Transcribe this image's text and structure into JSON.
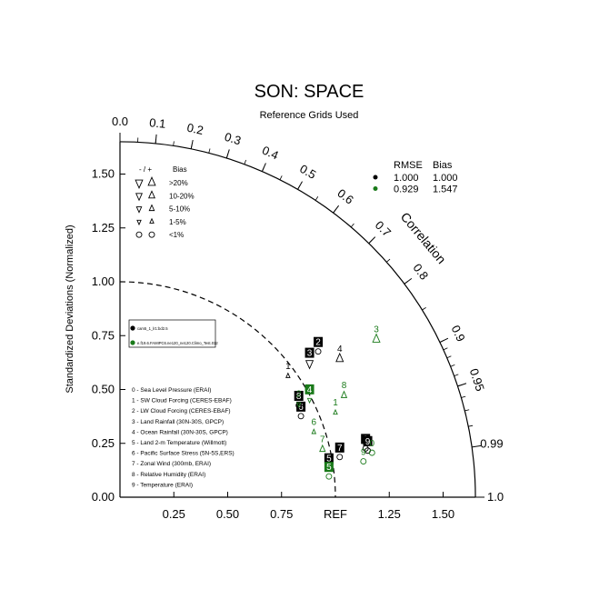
{
  "chart_data": {
    "type": "scatter",
    "subtype": "taylor-diagram",
    "title": "SON: SPACE",
    "subtitle": "Reference Grids Used",
    "ylabel": "Standardized Deviations (Normalized)",
    "angular_label": "Correlation",
    "ref_label": "REF",
    "std_range": [
      0,
      1.65
    ],
    "std_ticks": [
      0.25,
      0.5,
      0.75,
      1.25,
      1.5
    ],
    "std_ticks_y": [
      "0.00",
      "0.25",
      "0.50",
      "0.75",
      "1.00",
      "1.25",
      "1.50"
    ],
    "std_ticks_x": [
      "0.25",
      "0.50",
      "0.75",
      "1.25",
      "1.50"
    ],
    "corr_ticks": [
      {
        "value": 0.0,
        "label": "0.0"
      },
      {
        "value": 0.1,
        "label": "0.1"
      },
      {
        "value": 0.2,
        "label": "0.2"
      },
      {
        "value": 0.3,
        "label": "0.3"
      },
      {
        "value": 0.4,
        "label": "0.4"
      },
      {
        "value": 0.5,
        "label": "0.5"
      },
      {
        "value": 0.6,
        "label": "0.6"
      },
      {
        "value": 0.7,
        "label": "0.7"
      },
      {
        "value": 0.8,
        "label": "0.8"
      },
      {
        "value": 0.9,
        "label": "0.9"
      },
      {
        "value": 0.95,
        "label": "0.95"
      },
      {
        "value": 0.99,
        "label": "0.99"
      },
      {
        "value": 1.0,
        "label": "1.0"
      }
    ],
    "bias_legend": {
      "header_sign": "- / +",
      "header_bias": "Bias",
      "rows": [
        {
          "label": ">20%",
          "size": "xl"
        },
        {
          "label": "10-20%",
          "size": "l"
        },
        {
          "label": "5-10%",
          "size": "m"
        },
        {
          "label": "1-5%",
          "size": "s"
        },
        {
          "label": "<1%",
          "size": "circle"
        }
      ]
    },
    "stats_legend": {
      "rmse_header": "RMSE",
      "bias_header": "Bias",
      "rows": [
        {
          "rmse": "1.000",
          "bias": "1.000",
          "color": "#000000"
        },
        {
          "rmse": "0.929",
          "bias": "1.547",
          "color": "#1a7a1a"
        }
      ]
    },
    "case_legend": {
      "cases": [
        {
          "label": "cam5_1_lr1:bd2.5",
          "color": "#000000"
        },
        {
          "label": "e.f19.6.FAMIPC6.ne120_ne120.Climo_Test.012",
          "color": "#1a7a1a"
        }
      ]
    },
    "variables": [
      "0 - Sea Level Pressure (ERAI)",
      "1 - SW Cloud Forcing (CERES-EBAF)",
      "2 - LW Cloud Forcing (CERES-EBAF)",
      "3 - Land Rainfall (30N-30S, GPCP)",
      "4 - Ocean Rainfall (30N-30S, GPCP)",
      "5 - Land 2-m Temperature (Willmott)",
      "6 - Pacific Surface Stress (5N-5S,ERS)",
      "7 - Zonal Wind (300mb, ERAI)",
      "8 - Relative Humidity (ERAI)",
      "9 - Temperature (ERAI)"
    ],
    "series": [
      {
        "name": "cam5_1_lr1:bd2.5",
        "color": "#000000",
        "points": [
          {
            "id": "0",
            "x": 1.14,
            "y": 0.26,
            "marker": "circle"
          },
          {
            "id": "1",
            "x": 0.78,
            "y": 0.6,
            "marker": "up-small"
          },
          {
            "id": "2",
            "x": 0.92,
            "y": 0.71,
            "marker": "circle"
          },
          {
            "id": "3",
            "x": 0.88,
            "y": 0.66,
            "marker": "down-large"
          },
          {
            "id": "4",
            "x": 1.02,
            "y": 0.68,
            "marker": "up-large"
          },
          {
            "id": "5",
            "x": 0.97,
            "y": 0.17,
            "marker": "circle"
          },
          {
            "id": "6",
            "x": 0.84,
            "y": 0.41,
            "marker": "circle"
          },
          {
            "id": "7",
            "x": 1.02,
            "y": 0.22,
            "marker": "circle"
          },
          {
            "id": "8",
            "x": 0.83,
            "y": 0.46,
            "marker": "circle"
          },
          {
            "id": "9",
            "x": 1.15,
            "y": 0.25,
            "marker": "circle"
          }
        ]
      },
      {
        "name": "e.f19.6.FAMIPC6.ne120_ne120.Climo_Test.012",
        "color": "#1a7a1a",
        "points": [
          {
            "id": "0",
            "x": 1.17,
            "y": 0.24,
            "marker": "circle"
          },
          {
            "id": "1",
            "x": 1.0,
            "y": 0.43,
            "marker": "up-small"
          },
          {
            "id": "2",
            "x": 0.83,
            "y": 0.47,
            "marker": "down-small"
          },
          {
            "id": "3",
            "x": 1.19,
            "y": 0.77,
            "marker": "up-large"
          },
          {
            "id": "4",
            "x": 0.88,
            "y": 0.49,
            "marker": "down-small"
          },
          {
            "id": "5",
            "x": 0.97,
            "y": 0.13,
            "marker": "circle"
          },
          {
            "id": "6",
            "x": 0.9,
            "y": 0.34,
            "marker": "up-small"
          },
          {
            "id": "7",
            "x": 0.94,
            "y": 0.26,
            "marker": "up-medium"
          },
          {
            "id": "8",
            "x": 1.04,
            "y": 0.51,
            "marker": "up-medium"
          },
          {
            "id": "9",
            "x": 1.13,
            "y": 0.2,
            "marker": "circle"
          }
        ]
      }
    ]
  }
}
